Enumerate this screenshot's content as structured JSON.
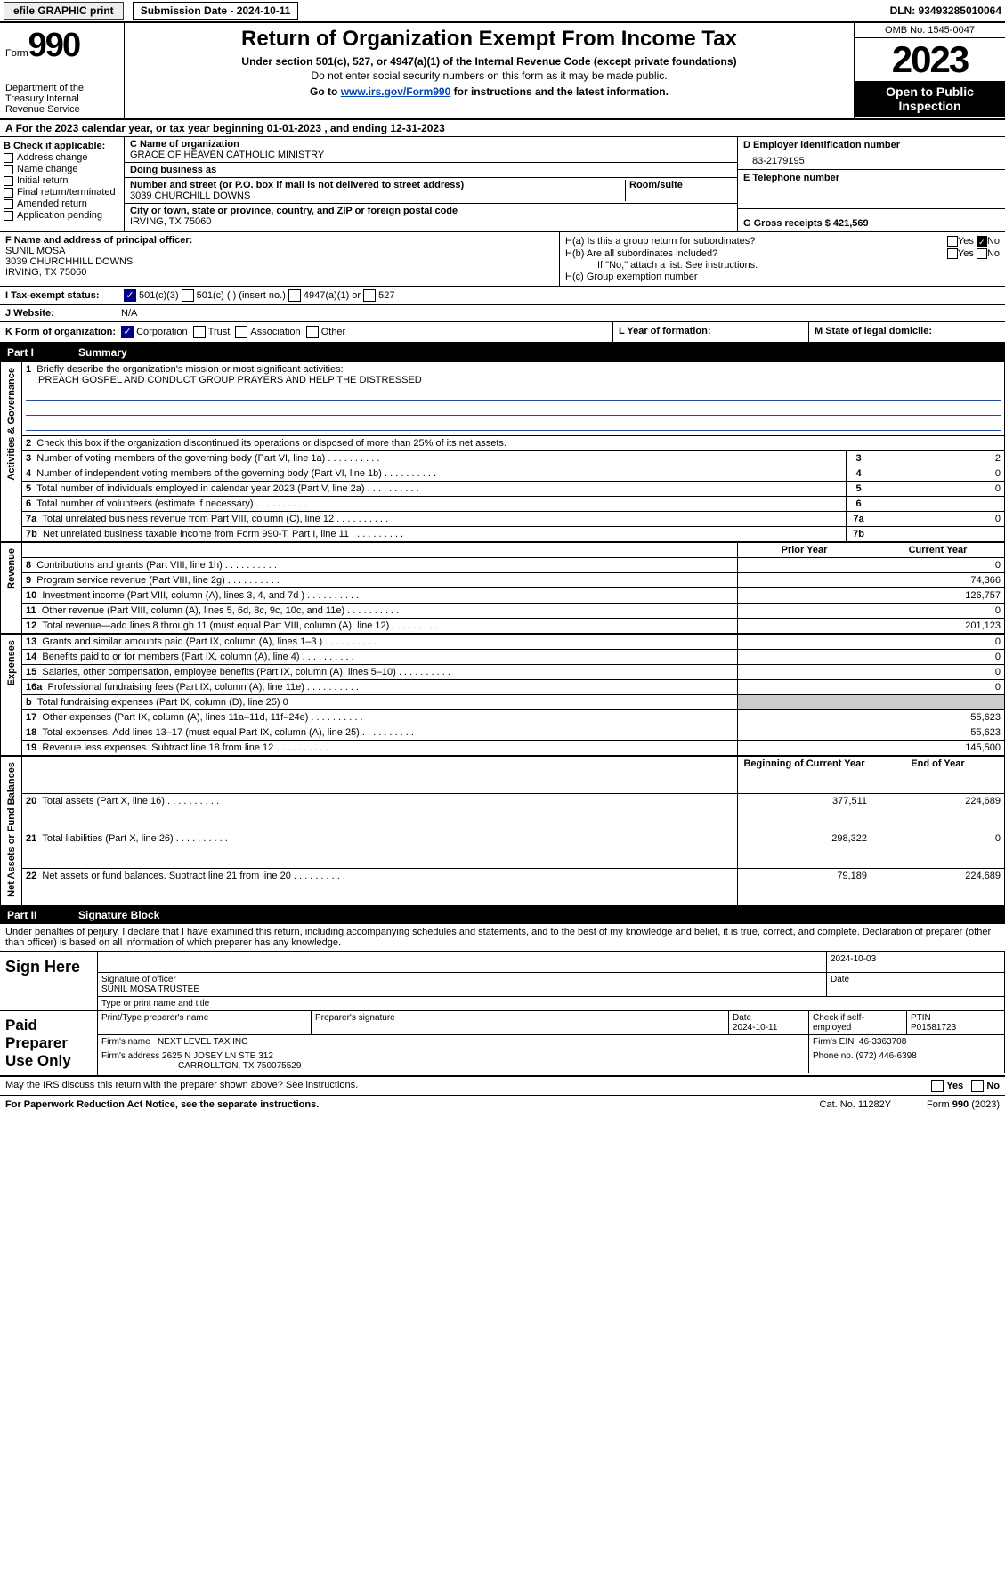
{
  "topbar": {
    "efile": "efile GRAPHIC print",
    "submission_label": "Submission Date - 2024-10-11",
    "dln_label": "DLN: 93493285010064"
  },
  "header": {
    "form_label": "Form",
    "form_number": "990",
    "dept": "Department of the Treasury\nInternal Revenue Service",
    "title": "Return of Organization Exempt From Income Tax",
    "subtitle": "Under section 501(c), 527, or 4947(a)(1) of the Internal Revenue Code (except private foundations)",
    "note": "Do not enter social security numbers on this form as it may be made public.",
    "goto_prefix": "Go to ",
    "goto_link": "www.irs.gov/Form990",
    "goto_suffix": " for instructions and the latest information.",
    "omb": "OMB No. 1545-0047",
    "year": "2023",
    "open": "Open to Public Inspection"
  },
  "line_a": "For the 2023 calendar year, or tax year beginning 01-01-2023   , and ending 12-31-2023",
  "section_b": {
    "label": "B Check if applicable:",
    "items": [
      "Address change",
      "Name change",
      "Initial return",
      "Final return/terminated",
      "Amended return",
      "Application pending"
    ]
  },
  "section_c": {
    "name_label": "C Name of organization",
    "name": "GRACE OF HEAVEN CATHOLIC MINISTRY",
    "dba_label": "Doing business as",
    "dba": "",
    "addr_label": "Number and street (or P.O. box if mail is not delivered to street address)",
    "addr": "3039 CHURCHILL DOWNS",
    "room_label": "Room/suite",
    "city_label": "City or town, state or province, country, and ZIP or foreign postal code",
    "city": "IRVING, TX  75060"
  },
  "section_d": {
    "label": "D Employer identification number",
    "value": "83-2179195"
  },
  "section_e": {
    "label": "E Telephone number",
    "value": ""
  },
  "section_g": {
    "label": "G Gross receipts $ 421,569"
  },
  "section_f": {
    "label": "F  Name and address of principal officer:",
    "name": "SUNIL MOSA",
    "addr1": "3039 CHURCHHILL DOWNS",
    "addr2": "IRVING, TX  75060"
  },
  "section_h": {
    "ha": "H(a)  Is this a group return for subordinates?",
    "hb": "H(b)  Are all subordinates included?",
    "hb_note": "If \"No,\" attach a list. See instructions.",
    "hc": "H(c)  Group exemption number",
    "yes": "Yes",
    "no": "No"
  },
  "tax_status": {
    "i_label": "I   Tax-exempt status:",
    "opt1": "501(c)(3)",
    "opt2": "501(c) (  ) (insert no.)",
    "opt3": "4947(a)(1) or",
    "opt4": "527"
  },
  "website": {
    "j_label": "J   Website:",
    "value": "N/A"
  },
  "klm": {
    "k_label": "K Form of organization:",
    "k_opts": [
      "Corporation",
      "Trust",
      "Association",
      "Other"
    ],
    "l_label": "L Year of formation:",
    "m_label": "M State of legal domicile:"
  },
  "part1": {
    "label": "Part I",
    "title": "Summary",
    "mission_label": "Briefly describe the organization's mission or most significant activities:",
    "mission": "PREACH GOSPEL AND CONDUCT GROUP PRAYERS AND HELP THE DISTRESSED",
    "line2": "Check this box         if the organization discontinued its operations or disposed of more than 25% of its net assets.",
    "sides": {
      "gov": "Activities & Governance",
      "rev": "Revenue",
      "exp": "Expenses",
      "net": "Net Assets or Fund Balances"
    },
    "rows_gov": [
      {
        "n": "3",
        "t": "Number of voting members of the governing body (Part VI, line 1a)",
        "v": "2"
      },
      {
        "n": "4",
        "t": "Number of independent voting members of the governing body (Part VI, line 1b)",
        "v": "0"
      },
      {
        "n": "5",
        "t": "Total number of individuals employed in calendar year 2023 (Part V, line 2a)",
        "v": "0"
      },
      {
        "n": "6",
        "t": "Total number of volunteers (estimate if necessary)",
        "v": ""
      },
      {
        "n": "7a",
        "t": "Total unrelated business revenue from Part VIII, column (C), line 12",
        "v": "0"
      },
      {
        "n": "7b",
        "t": "Net unrelated business taxable income from Form 990-T, Part I, line 11",
        "v": ""
      }
    ],
    "col_prior": "Prior Year",
    "col_curr": "Current Year",
    "rows_rev": [
      {
        "n": "8",
        "t": "Contributions and grants (Part VIII, line 1h)",
        "p": "",
        "c": "0"
      },
      {
        "n": "9",
        "t": "Program service revenue (Part VIII, line 2g)",
        "p": "",
        "c": "74,366"
      },
      {
        "n": "10",
        "t": "Investment income (Part VIII, column (A), lines 3, 4, and 7d )",
        "p": "",
        "c": "126,757"
      },
      {
        "n": "11",
        "t": "Other revenue (Part VIII, column (A), lines 5, 6d, 8c, 9c, 10c, and 11e)",
        "p": "",
        "c": "0"
      },
      {
        "n": "12",
        "t": "Total revenue—add lines 8 through 11 (must equal Part VIII, column (A), line 12)",
        "p": "",
        "c": "201,123"
      }
    ],
    "rows_exp": [
      {
        "n": "13",
        "t": "Grants and similar amounts paid (Part IX, column (A), lines 1–3 )",
        "p": "",
        "c": "0"
      },
      {
        "n": "14",
        "t": "Benefits paid to or for members (Part IX, column (A), line 4)",
        "p": "",
        "c": "0"
      },
      {
        "n": "15",
        "t": "Salaries, other compensation, employee benefits (Part IX, column (A), lines 5–10)",
        "p": "",
        "c": "0"
      },
      {
        "n": "16a",
        "t": "Professional fundraising fees (Part IX, column (A), line 11e)",
        "p": "",
        "c": "0"
      },
      {
        "n": "b",
        "t": "Total fundraising expenses (Part IX, column (D), line 25) 0",
        "p": "grey",
        "c": "grey"
      },
      {
        "n": "17",
        "t": "Other expenses (Part IX, column (A), lines 11a–11d, 11f–24e)",
        "p": "",
        "c": "55,623"
      },
      {
        "n": "18",
        "t": "Total expenses. Add lines 13–17 (must equal Part IX, column (A), line 25)",
        "p": "",
        "c": "55,623"
      },
      {
        "n": "19",
        "t": "Revenue less expenses. Subtract line 18 from line 12",
        "p": "",
        "c": "145,500"
      }
    ],
    "col_begin": "Beginning of Current Year",
    "col_end": "End of Year",
    "rows_net": [
      {
        "n": "20",
        "t": "Total assets (Part X, line 16)",
        "p": "377,511",
        "c": "224,689"
      },
      {
        "n": "21",
        "t": "Total liabilities (Part X, line 26)",
        "p": "298,322",
        "c": "0"
      },
      {
        "n": "22",
        "t": "Net assets or fund balances. Subtract line 21 from line 20",
        "p": "79,189",
        "c": "224,689"
      }
    ]
  },
  "part2": {
    "label": "Part II",
    "title": "Signature Block"
  },
  "penalty": "Under penalties of perjury, I declare that I have examined this return, including accompanying schedules and statements, and to the best of my knowledge and belief, it is true, correct, and complete. Declaration of preparer (other than officer) is based on all information of which preparer has any knowledge.",
  "sign": {
    "here": "Sign Here",
    "sig_officer": "Signature of officer",
    "officer_name": "SUNIL MOSA  TRUSTEE",
    "type_name": "Type or print name and title",
    "date_label": "Date",
    "date_value": "2024-10-03"
  },
  "paid": {
    "label": "Paid Preparer Use Only",
    "print_name": "Print/Type preparer's name",
    "prep_sig": "Preparer's signature",
    "date_label": "Date",
    "date_value": "2024-10-11",
    "check_label": "Check          if self-employed",
    "ptin_label": "PTIN",
    "ptin": "P01581723",
    "firm_name_label": "Firm's name",
    "firm_name": "NEXT LEVEL TAX INC",
    "firm_ein_label": "Firm's EIN",
    "firm_ein": "46-3363708",
    "firm_addr_label": "Firm's address",
    "firm_addr1": "2625 N JOSEY LN STE 312",
    "firm_addr2": "CARROLLTON, TX  750075529",
    "phone_label": "Phone no.",
    "phone": "(972) 446-6398"
  },
  "may": {
    "text": "May the IRS discuss this return with the preparer shown above? See instructions.",
    "yes": "Yes",
    "no": "No"
  },
  "footer": {
    "paperwork": "For Paperwork Reduction Act Notice, see the separate instructions.",
    "cat": "Cat. No. 11282Y",
    "form": "Form 990 (2023)"
  },
  "colors": {
    "link": "#0047b3",
    "check": "#00008b",
    "rule": "#2a4aa0"
  }
}
